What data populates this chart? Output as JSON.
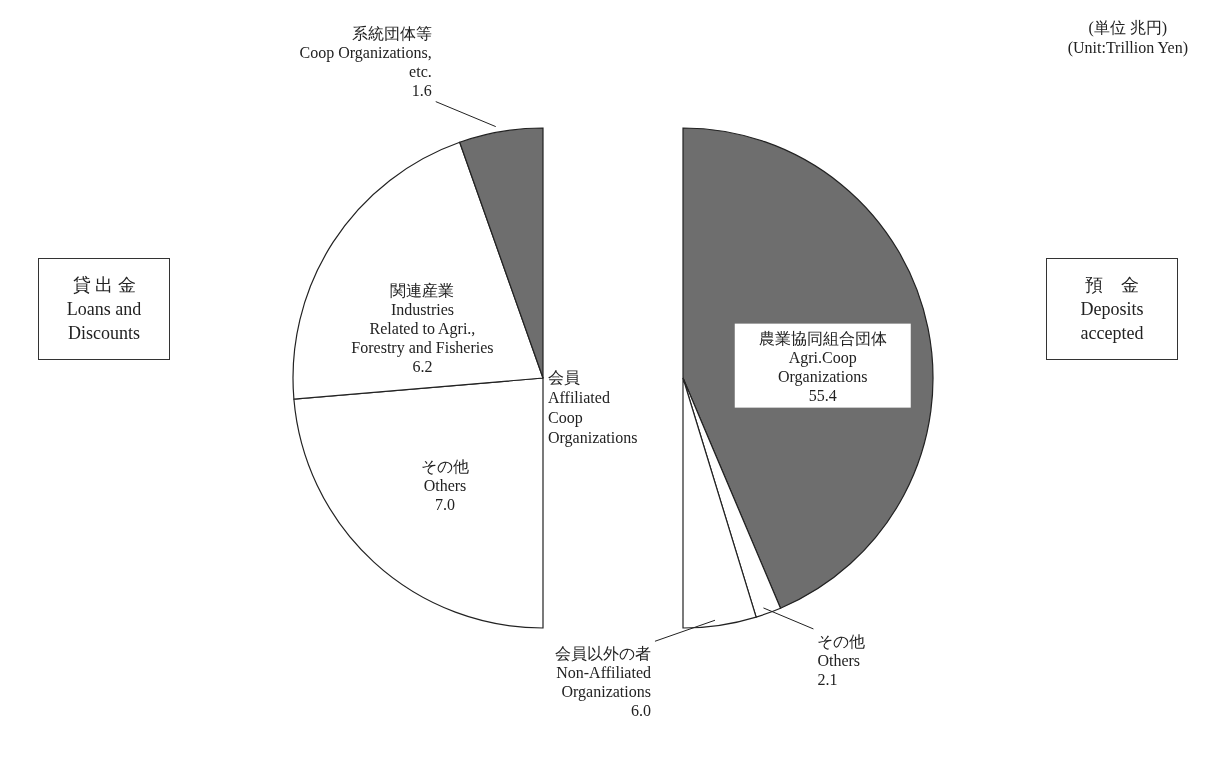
{
  "chart_data": [
    {
      "type": "pie",
      "title": "貸 出 金\nLoans and\nDiscounts",
      "categories": [
        "その他\nOthers",
        "関連産業\nIndustries\nRelated to Agri.,\nForestry and Fisheries",
        "系統団体等\nCoop Organizations,\netc."
      ],
      "values": [
        7.0,
        6.2,
        1.6
      ],
      "value_labels": [
        "7.0",
        "6.2",
        "1.6"
      ],
      "colors": [
        "#ffffff",
        "#ffffff",
        "#6e6e6e"
      ],
      "legend": false,
      "annotations": [
        "会員\nAffiliated\nCoop Organizations"
      ]
    },
    {
      "type": "pie",
      "title": "預　金\nDeposits\naccepted",
      "categories": [
        "農業協同組合団体\nAgri.Coop\nOrganizations",
        "その他\nOthers",
        "会員以外の者\nNon-Affiliated\nOrganizations"
      ],
      "values": [
        55.4,
        2.1,
        6.0
      ],
      "value_labels": [
        "55.4",
        "2.1",
        "6.0"
      ],
      "colors": [
        "#6e6e6e",
        "#ffffff",
        "#ffffff"
      ],
      "legend": false,
      "annotations": [
        "(単位 兆円)\n(Unit:Trillion Yen)"
      ]
    }
  ]
}
